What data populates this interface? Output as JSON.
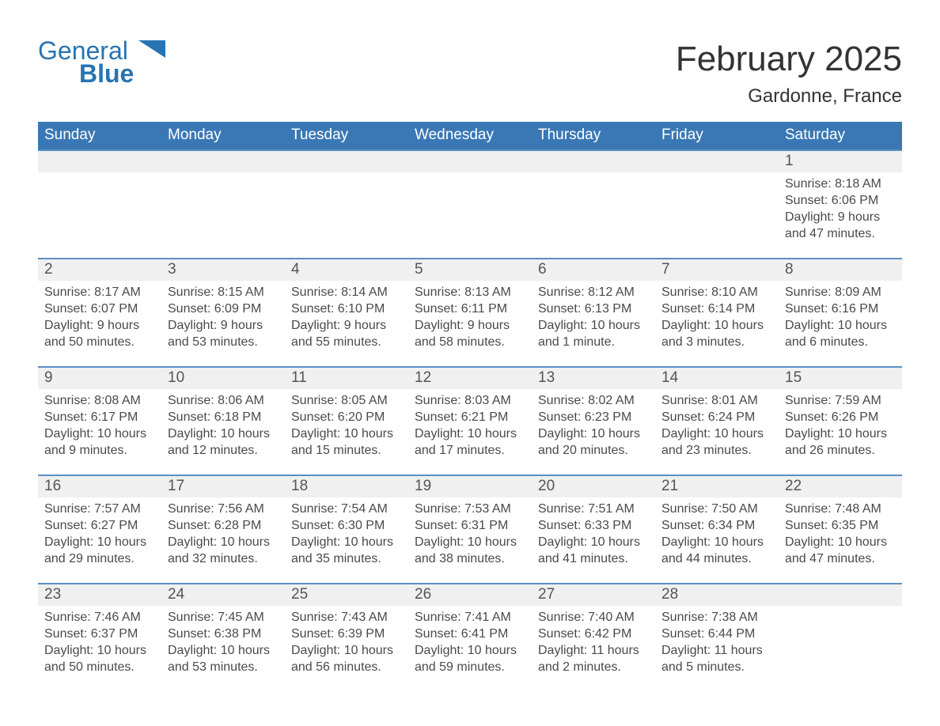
{
  "logo": {
    "word1": "General",
    "word2": "Blue"
  },
  "title": "February 2025",
  "location": "Gardonne, France",
  "colors": {
    "header_blue": "#3a78b5",
    "accent_blue": "#2073b8",
    "logo_blue": "#2874b2",
    "row_band": "#f0f0f0",
    "row_border": "#5a8fc1",
    "background": "#ffffff"
  },
  "weekdays": [
    "Sunday",
    "Monday",
    "Tuesday",
    "Wednesday",
    "Thursday",
    "Friday",
    "Saturday"
  ],
  "rows": [
    {
      "nums": [
        "",
        "",
        "",
        "",
        "",
        "",
        "1"
      ],
      "details": [
        null,
        null,
        null,
        null,
        null,
        null,
        {
          "sunrise": "Sunrise: 8:18 AM",
          "sunset": "Sunset: 6:06 PM",
          "daylight": "Daylight: 9 hours and 47 minutes."
        }
      ]
    },
    {
      "nums": [
        "2",
        "3",
        "4",
        "5",
        "6",
        "7",
        "8"
      ],
      "details": [
        {
          "sunrise": "Sunrise: 8:17 AM",
          "sunset": "Sunset: 6:07 PM",
          "daylight": "Daylight: 9 hours and 50 minutes."
        },
        {
          "sunrise": "Sunrise: 8:15 AM",
          "sunset": "Sunset: 6:09 PM",
          "daylight": "Daylight: 9 hours and 53 minutes."
        },
        {
          "sunrise": "Sunrise: 8:14 AM",
          "sunset": "Sunset: 6:10 PM",
          "daylight": "Daylight: 9 hours and 55 minutes."
        },
        {
          "sunrise": "Sunrise: 8:13 AM",
          "sunset": "Sunset: 6:11 PM",
          "daylight": "Daylight: 9 hours and 58 minutes."
        },
        {
          "sunrise": "Sunrise: 8:12 AM",
          "sunset": "Sunset: 6:13 PM",
          "daylight": "Daylight: 10 hours and 1 minute."
        },
        {
          "sunrise": "Sunrise: 8:10 AM",
          "sunset": "Sunset: 6:14 PM",
          "daylight": "Daylight: 10 hours and 3 minutes."
        },
        {
          "sunrise": "Sunrise: 8:09 AM",
          "sunset": "Sunset: 6:16 PM",
          "daylight": "Daylight: 10 hours and 6 minutes."
        }
      ]
    },
    {
      "nums": [
        "9",
        "10",
        "11",
        "12",
        "13",
        "14",
        "15"
      ],
      "details": [
        {
          "sunrise": "Sunrise: 8:08 AM",
          "sunset": "Sunset: 6:17 PM",
          "daylight": "Daylight: 10 hours and 9 minutes."
        },
        {
          "sunrise": "Sunrise: 8:06 AM",
          "sunset": "Sunset: 6:18 PM",
          "daylight": "Daylight: 10 hours and 12 minutes."
        },
        {
          "sunrise": "Sunrise: 8:05 AM",
          "sunset": "Sunset: 6:20 PM",
          "daylight": "Daylight: 10 hours and 15 minutes."
        },
        {
          "sunrise": "Sunrise: 8:03 AM",
          "sunset": "Sunset: 6:21 PM",
          "daylight": "Daylight: 10 hours and 17 minutes."
        },
        {
          "sunrise": "Sunrise: 8:02 AM",
          "sunset": "Sunset: 6:23 PM",
          "daylight": "Daylight: 10 hours and 20 minutes."
        },
        {
          "sunrise": "Sunrise: 8:01 AM",
          "sunset": "Sunset: 6:24 PM",
          "daylight": "Daylight: 10 hours and 23 minutes."
        },
        {
          "sunrise": "Sunrise: 7:59 AM",
          "sunset": "Sunset: 6:26 PM",
          "daylight": "Daylight: 10 hours and 26 minutes."
        }
      ]
    },
    {
      "nums": [
        "16",
        "17",
        "18",
        "19",
        "20",
        "21",
        "22"
      ],
      "details": [
        {
          "sunrise": "Sunrise: 7:57 AM",
          "sunset": "Sunset: 6:27 PM",
          "daylight": "Daylight: 10 hours and 29 minutes."
        },
        {
          "sunrise": "Sunrise: 7:56 AM",
          "sunset": "Sunset: 6:28 PM",
          "daylight": "Daylight: 10 hours and 32 minutes."
        },
        {
          "sunrise": "Sunrise: 7:54 AM",
          "sunset": "Sunset: 6:30 PM",
          "daylight": "Daylight: 10 hours and 35 minutes."
        },
        {
          "sunrise": "Sunrise: 7:53 AM",
          "sunset": "Sunset: 6:31 PM",
          "daylight": "Daylight: 10 hours and 38 minutes."
        },
        {
          "sunrise": "Sunrise: 7:51 AM",
          "sunset": "Sunset: 6:33 PM",
          "daylight": "Daylight: 10 hours and 41 minutes."
        },
        {
          "sunrise": "Sunrise: 7:50 AM",
          "sunset": "Sunset: 6:34 PM",
          "daylight": "Daylight: 10 hours and 44 minutes."
        },
        {
          "sunrise": "Sunrise: 7:48 AM",
          "sunset": "Sunset: 6:35 PM",
          "daylight": "Daylight: 10 hours and 47 minutes."
        }
      ]
    },
    {
      "nums": [
        "23",
        "24",
        "25",
        "26",
        "27",
        "28",
        ""
      ],
      "details": [
        {
          "sunrise": "Sunrise: 7:46 AM",
          "sunset": "Sunset: 6:37 PM",
          "daylight": "Daylight: 10 hours and 50 minutes."
        },
        {
          "sunrise": "Sunrise: 7:45 AM",
          "sunset": "Sunset: 6:38 PM",
          "daylight": "Daylight: 10 hours and 53 minutes."
        },
        {
          "sunrise": "Sunrise: 7:43 AM",
          "sunset": "Sunset: 6:39 PM",
          "daylight": "Daylight: 10 hours and 56 minutes."
        },
        {
          "sunrise": "Sunrise: 7:41 AM",
          "sunset": "Sunset: 6:41 PM",
          "daylight": "Daylight: 10 hours and 59 minutes."
        },
        {
          "sunrise": "Sunrise: 7:40 AM",
          "sunset": "Sunset: 6:42 PM",
          "daylight": "Daylight: 11 hours and 2 minutes."
        },
        {
          "sunrise": "Sunrise: 7:38 AM",
          "sunset": "Sunset: 6:44 PM",
          "daylight": "Daylight: 11 hours and 5 minutes."
        },
        null
      ]
    }
  ]
}
